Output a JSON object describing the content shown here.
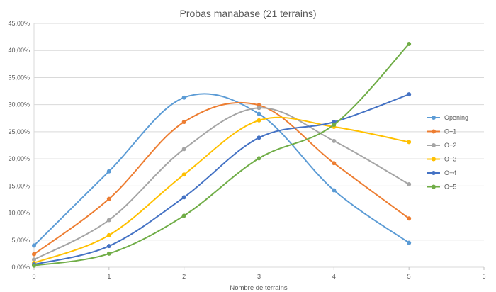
{
  "chart_data": {
    "type": "line",
    "title": "Probas manabase (21 terrains)",
    "xlabel": "Nombre de terrains",
    "ylabel": "",
    "xlim": [
      0,
      6
    ],
    "ylim": [
      0,
      45
    ],
    "x_ticks": [
      "0",
      "1",
      "2",
      "3",
      "4",
      "5",
      "6"
    ],
    "y_ticks": [
      "0,00%",
      "5,00%",
      "10,00%",
      "15,00%",
      "20,00%",
      "25,00%",
      "30,00%",
      "35,00%",
      "40,00%",
      "45,00%"
    ],
    "y_unit": "%",
    "grid": "horizontal",
    "smooth": true,
    "legend_position": "right",
    "x": [
      0,
      1,
      2,
      3,
      4,
      5
    ],
    "series": [
      {
        "name": "Opening",
        "color": "#5B9BD5",
        "values": [
          4.0,
          17.7,
          31.3,
          28.3,
          14.2,
          4.5
        ]
      },
      {
        "name": "O+1",
        "color": "#ED7D31",
        "values": [
          2.4,
          12.6,
          26.8,
          29.9,
          19.2,
          9.0
        ]
      },
      {
        "name": "O+2",
        "color": "#A5A5A5",
        "values": [
          1.4,
          8.7,
          21.8,
          29.4,
          23.3,
          15.3
        ]
      },
      {
        "name": "O+3",
        "color": "#FFC000",
        "values": [
          0.8,
          5.9,
          17.1,
          27.1,
          25.9,
          23.1
        ]
      },
      {
        "name": "O+4",
        "color": "#4472C4",
        "values": [
          0.5,
          3.9,
          12.9,
          23.9,
          26.8,
          31.9
        ]
      },
      {
        "name": "O+5",
        "color": "#70AD47",
        "values": [
          0.3,
          2.5,
          9.5,
          20.1,
          26.3,
          41.2
        ]
      }
    ]
  }
}
